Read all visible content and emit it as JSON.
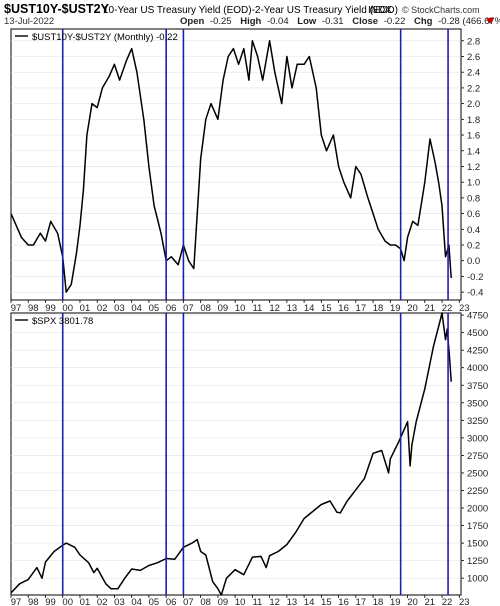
{
  "header": {
    "symbol": "$UST10Y-$UST2Y",
    "description": "10-Year US Treasury Yield (EOD)-2-Year US Treasury Yield (EOD)",
    "exchange": "INDX",
    "brand": "© StockCharts.com",
    "date": "13-Jul-2022",
    "open_label": "Open",
    "open": "-0.25",
    "high_label": "High",
    "high": "-0.04",
    "low_label": "Low",
    "low": "-0.31",
    "close_label": "Close",
    "close": "-0.22",
    "chg_label": "Chg",
    "chg": "-0.28 (466.67%)"
  },
  "colors": {
    "line": "#000000",
    "vertical_markers": "#1f1fb0",
    "grid": "#e2e2e2",
    "down_marker": "#cc0000"
  },
  "chart_data": [
    {
      "type": "line",
      "legend": "$UST10Y-$UST2Y (Monthly) -0.22",
      "x_ticks": [
        "97",
        "98",
        "99",
        "00",
        "01",
        "02",
        "03",
        "04",
        "05",
        "06",
        "07",
        "08",
        "09",
        "10",
        "11",
        "12",
        "13",
        "14",
        "15",
        "16",
        "17",
        "18",
        "19",
        "20",
        "21",
        "22",
        "23"
      ],
      "y_ticks": [
        "-0.4",
        "-0.2",
        "0.0",
        "0.2",
        "0.4",
        "0.6",
        "0.8",
        "1.0",
        "1.2",
        "1.4",
        "1.6",
        "1.8",
        "2.0",
        "2.2",
        "2.4",
        "2.6",
        "2.8"
      ],
      "ylim": [
        -0.5,
        2.95
      ],
      "xlim": [
        1997.0,
        2023.1
      ],
      "grid": false,
      "legend_position": "top-left",
      "series": [
        {
          "x": [
            1997.0,
            1997.3,
            1997.6,
            1998.0,
            1998.3,
            1998.7,
            1999.0,
            1999.3,
            1999.7,
            2000.0,
            2000.2,
            2000.5,
            2000.8,
            2001.0,
            2001.2,
            2001.4,
            2001.7,
            2002.0,
            2002.3,
            2002.7,
            2003.0,
            2003.3,
            2003.7,
            2004.0,
            2004.3,
            2004.7,
            2005.0,
            2005.3,
            2005.7,
            2006.0,
            2006.3,
            2006.7,
            2007.0,
            2007.3,
            2007.6,
            2008.0,
            2008.3,
            2008.6,
            2009.0,
            2009.3,
            2009.6,
            2009.9,
            2010.2,
            2010.5,
            2010.8,
            2011.0,
            2011.3,
            2011.6,
            2012.0,
            2012.3,
            2012.7,
            2013.0,
            2013.3,
            2013.6,
            2014.0,
            2014.3,
            2014.7,
            2015.0,
            2015.3,
            2015.7,
            2016.0,
            2016.3,
            2016.7,
            2017.0,
            2017.3,
            2017.7,
            2018.0,
            2018.3,
            2018.7,
            2019.0,
            2019.3,
            2019.6,
            2019.8,
            2020.0,
            2020.3,
            2020.6,
            2021.0,
            2021.3,
            2021.6,
            2021.8,
            2022.0,
            2022.2,
            2022.4,
            2022.53
          ],
          "values": [
            0.6,
            0.45,
            0.3,
            0.2,
            0.2,
            0.35,
            0.25,
            0.5,
            0.35,
            0.05,
            -0.4,
            -0.3,
            0.1,
            0.45,
            0.9,
            1.6,
            2.0,
            1.95,
            2.2,
            2.35,
            2.5,
            2.3,
            2.55,
            2.7,
            2.4,
            1.8,
            1.2,
            0.7,
            0.35,
            0.0,
            0.05,
            -0.05,
            0.2,
            0.0,
            -0.1,
            1.3,
            1.8,
            2.0,
            1.8,
            2.3,
            2.6,
            2.7,
            2.5,
            2.7,
            2.3,
            2.8,
            2.6,
            2.3,
            2.8,
            2.4,
            2.0,
            2.6,
            2.2,
            2.5,
            2.5,
            2.6,
            2.2,
            1.6,
            1.4,
            1.6,
            1.2,
            1.0,
            0.8,
            1.2,
            1.1,
            0.8,
            0.6,
            0.4,
            0.25,
            0.2,
            0.2,
            0.15,
            0.0,
            0.3,
            0.5,
            0.45,
            1.0,
            1.55,
            1.25,
            1.0,
            0.7,
            0.05,
            0.2,
            -0.22
          ]
        }
      ]
    },
    {
      "type": "line",
      "legend": "$SPX 3801.78",
      "x_ticks": [
        "97",
        "98",
        "99",
        "00",
        "01",
        "02",
        "03",
        "04",
        "05",
        "06",
        "07",
        "08",
        "09",
        "10",
        "11",
        "12",
        "13",
        "14",
        "15",
        "16",
        "17",
        "18",
        "19",
        "20",
        "21",
        "22",
        "23"
      ],
      "y_ticks": [
        "1000",
        "1250",
        "1500",
        "1750",
        "2000",
        "2250",
        "2500",
        "2750",
        "3000",
        "3250",
        "3500",
        "3750",
        "4000",
        "4250",
        "4500",
        "4750"
      ],
      "ylim": [
        760,
        4780
      ],
      "xlim": [
        1997.0,
        2023.1
      ],
      "grid": false,
      "legend_position": "top-left",
      "series": [
        {
          "x": [
            1997.0,
            1997.5,
            1998.0,
            1998.5,
            1998.8,
            1999.0,
            1999.5,
            2000.0,
            2000.2,
            2000.7,
            2001.0,
            2001.5,
            2001.8,
            2002.0,
            2002.5,
            2002.8,
            2003.2,
            2003.6,
            2004.0,
            2004.5,
            2005.0,
            2005.5,
            2006.0,
            2006.5,
            2007.0,
            2007.5,
            2007.8,
            2008.0,
            2008.3,
            2008.7,
            2009.0,
            2009.2,
            2009.5,
            2010.0,
            2010.5,
            2011.0,
            2011.5,
            2011.8,
            2012.0,
            2012.5,
            2013.0,
            2013.5,
            2014.0,
            2014.5,
            2015.0,
            2015.5,
            2015.9,
            2016.1,
            2016.5,
            2017.0,
            2017.5,
            2018.0,
            2018.5,
            2018.9,
            2019.0,
            2019.5,
            2020.0,
            2020.15,
            2020.25,
            2020.5,
            2021.0,
            2021.5,
            2021.9,
            2022.0,
            2022.2,
            2022.3,
            2022.45,
            2022.53
          ],
          "values": [
            790,
            920,
            980,
            1150,
            1000,
            1230,
            1380,
            1470,
            1500,
            1440,
            1330,
            1220,
            1080,
            1140,
            920,
            850,
            850,
            1000,
            1130,
            1110,
            1180,
            1220,
            1280,
            1270,
            1440,
            1500,
            1550,
            1380,
            1330,
            950,
            850,
            760,
            1000,
            1120,
            1050,
            1300,
            1310,
            1150,
            1320,
            1380,
            1480,
            1650,
            1850,
            1950,
            2050,
            2100,
            1940,
            1930,
            2100,
            2260,
            2420,
            2780,
            2820,
            2500,
            2700,
            2950,
            3230,
            2600,
            2900,
            3230,
            3700,
            4300,
            4680,
            4780,
            4400,
            4550,
            4100,
            3800
          ]
        }
      ]
    }
  ],
  "vertical_marker_years": [
    2000.0,
    2006.0,
    2007.0,
    2019.6,
    2022.35
  ]
}
